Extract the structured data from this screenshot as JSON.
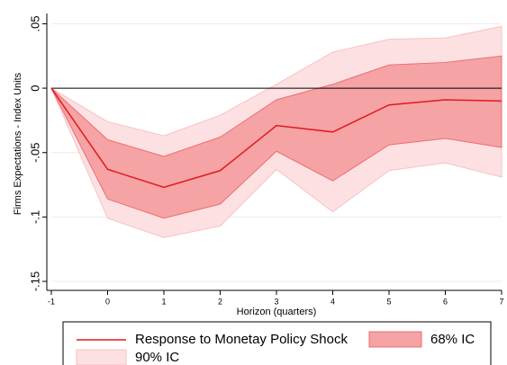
{
  "chart_data": {
    "type": "line",
    "x_label": "Horizon (quarters)",
    "y_label": "Firms Expectations - Index Units",
    "x": [
      -1,
      0,
      1,
      2,
      3,
      4,
      5,
      6,
      7
    ],
    "series": [
      {
        "name": "Response to Monetay Policy Shock",
        "color": "#e3191e",
        "values": [
          0,
          -0.063,
          -0.077,
          -0.064,
          -0.029,
          -0.034,
          -0.013,
          -0.009,
          -0.01
        ]
      }
    ],
    "bands": [
      {
        "name": "68% IC",
        "color": "#f5a3a5",
        "edge": "#ec6e72",
        "upper": [
          0,
          -0.04,
          -0.053,
          -0.038,
          -0.009,
          0.003,
          0.018,
          0.02,
          0.025
        ],
        "lower": [
          0,
          -0.086,
          -0.101,
          -0.09,
          -0.049,
          -0.072,
          -0.044,
          -0.039,
          -0.046
        ]
      },
      {
        "name": "90% IC",
        "color": "#fde1e2",
        "edge": "#f8c1c3",
        "upper": [
          0,
          -0.026,
          -0.037,
          -0.021,
          0.003,
          0.028,
          0.038,
          0.039,
          0.048
        ],
        "lower": [
          0,
          -0.101,
          -0.116,
          -0.107,
          -0.063,
          -0.096,
          -0.064,
          -0.058,
          -0.069
        ]
      }
    ],
    "xlim": [
      -1,
      7
    ],
    "xticks": [
      -1,
      0,
      1,
      2,
      3,
      4,
      5,
      6,
      7
    ],
    "ylim": [
      -0.157,
      0.058
    ],
    "yticks": [
      {
        "value": 0.05,
        "label": ".05"
      },
      0,
      {
        "value": -0.05,
        "label": "-.05"
      },
      {
        "value": -0.1,
        "label": "-.1"
      },
      {
        "value": -0.15,
        "label": "-.15"
      }
    ],
    "reference_line": 0,
    "grid": true,
    "legend": "bottom"
  }
}
